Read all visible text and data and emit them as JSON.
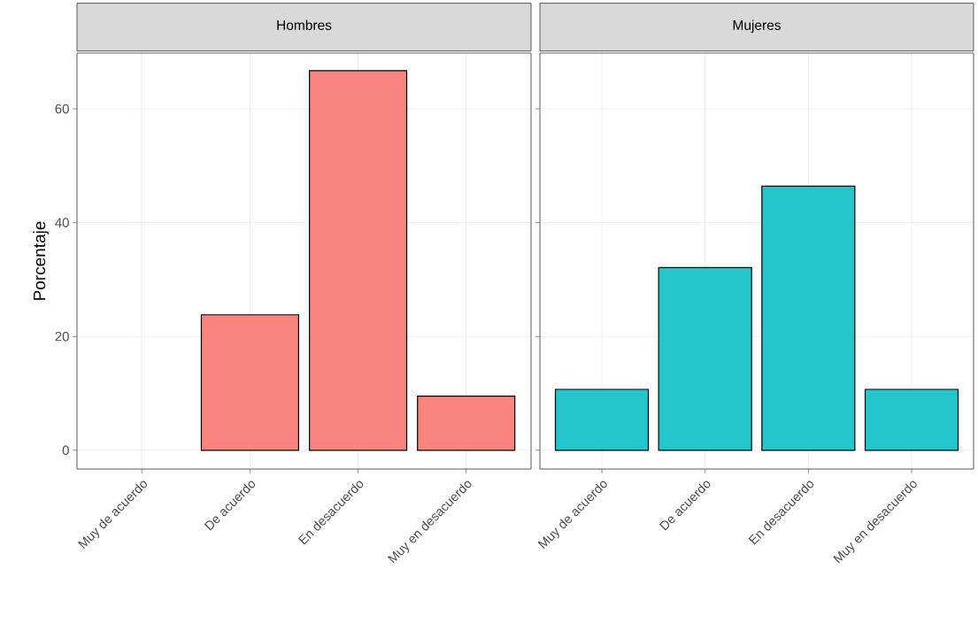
{
  "chart_data": [
    {
      "type": "bar",
      "title": "Hombres",
      "ylabel": "Porcentaje",
      "categories": [
        "Muy de acuerdo",
        "De acuerdo",
        "En desacuerdo",
        "Muy en desacuerdo"
      ],
      "values": [
        null,
        23.8,
        66.7,
        9.5
      ],
      "color": "#f8857e",
      "ylim": [
        -3.3,
        69.8
      ],
      "yticks": [
        0,
        20,
        40,
        60
      ],
      "grid": true
    },
    {
      "type": "bar",
      "title": "Mujeres",
      "categories": [
        "Muy de acuerdo",
        "De acuerdo",
        "En desacuerdo",
        "Muy en desacuerdo"
      ],
      "values": [
        10.7,
        32.1,
        46.4,
        10.7
      ],
      "color": "#24c6cc",
      "ylim": [
        -3.3,
        69.8
      ],
      "yticks": [
        0,
        20,
        40,
        60
      ],
      "grid": true,
      "tick_labels": "x"
    }
  ]
}
